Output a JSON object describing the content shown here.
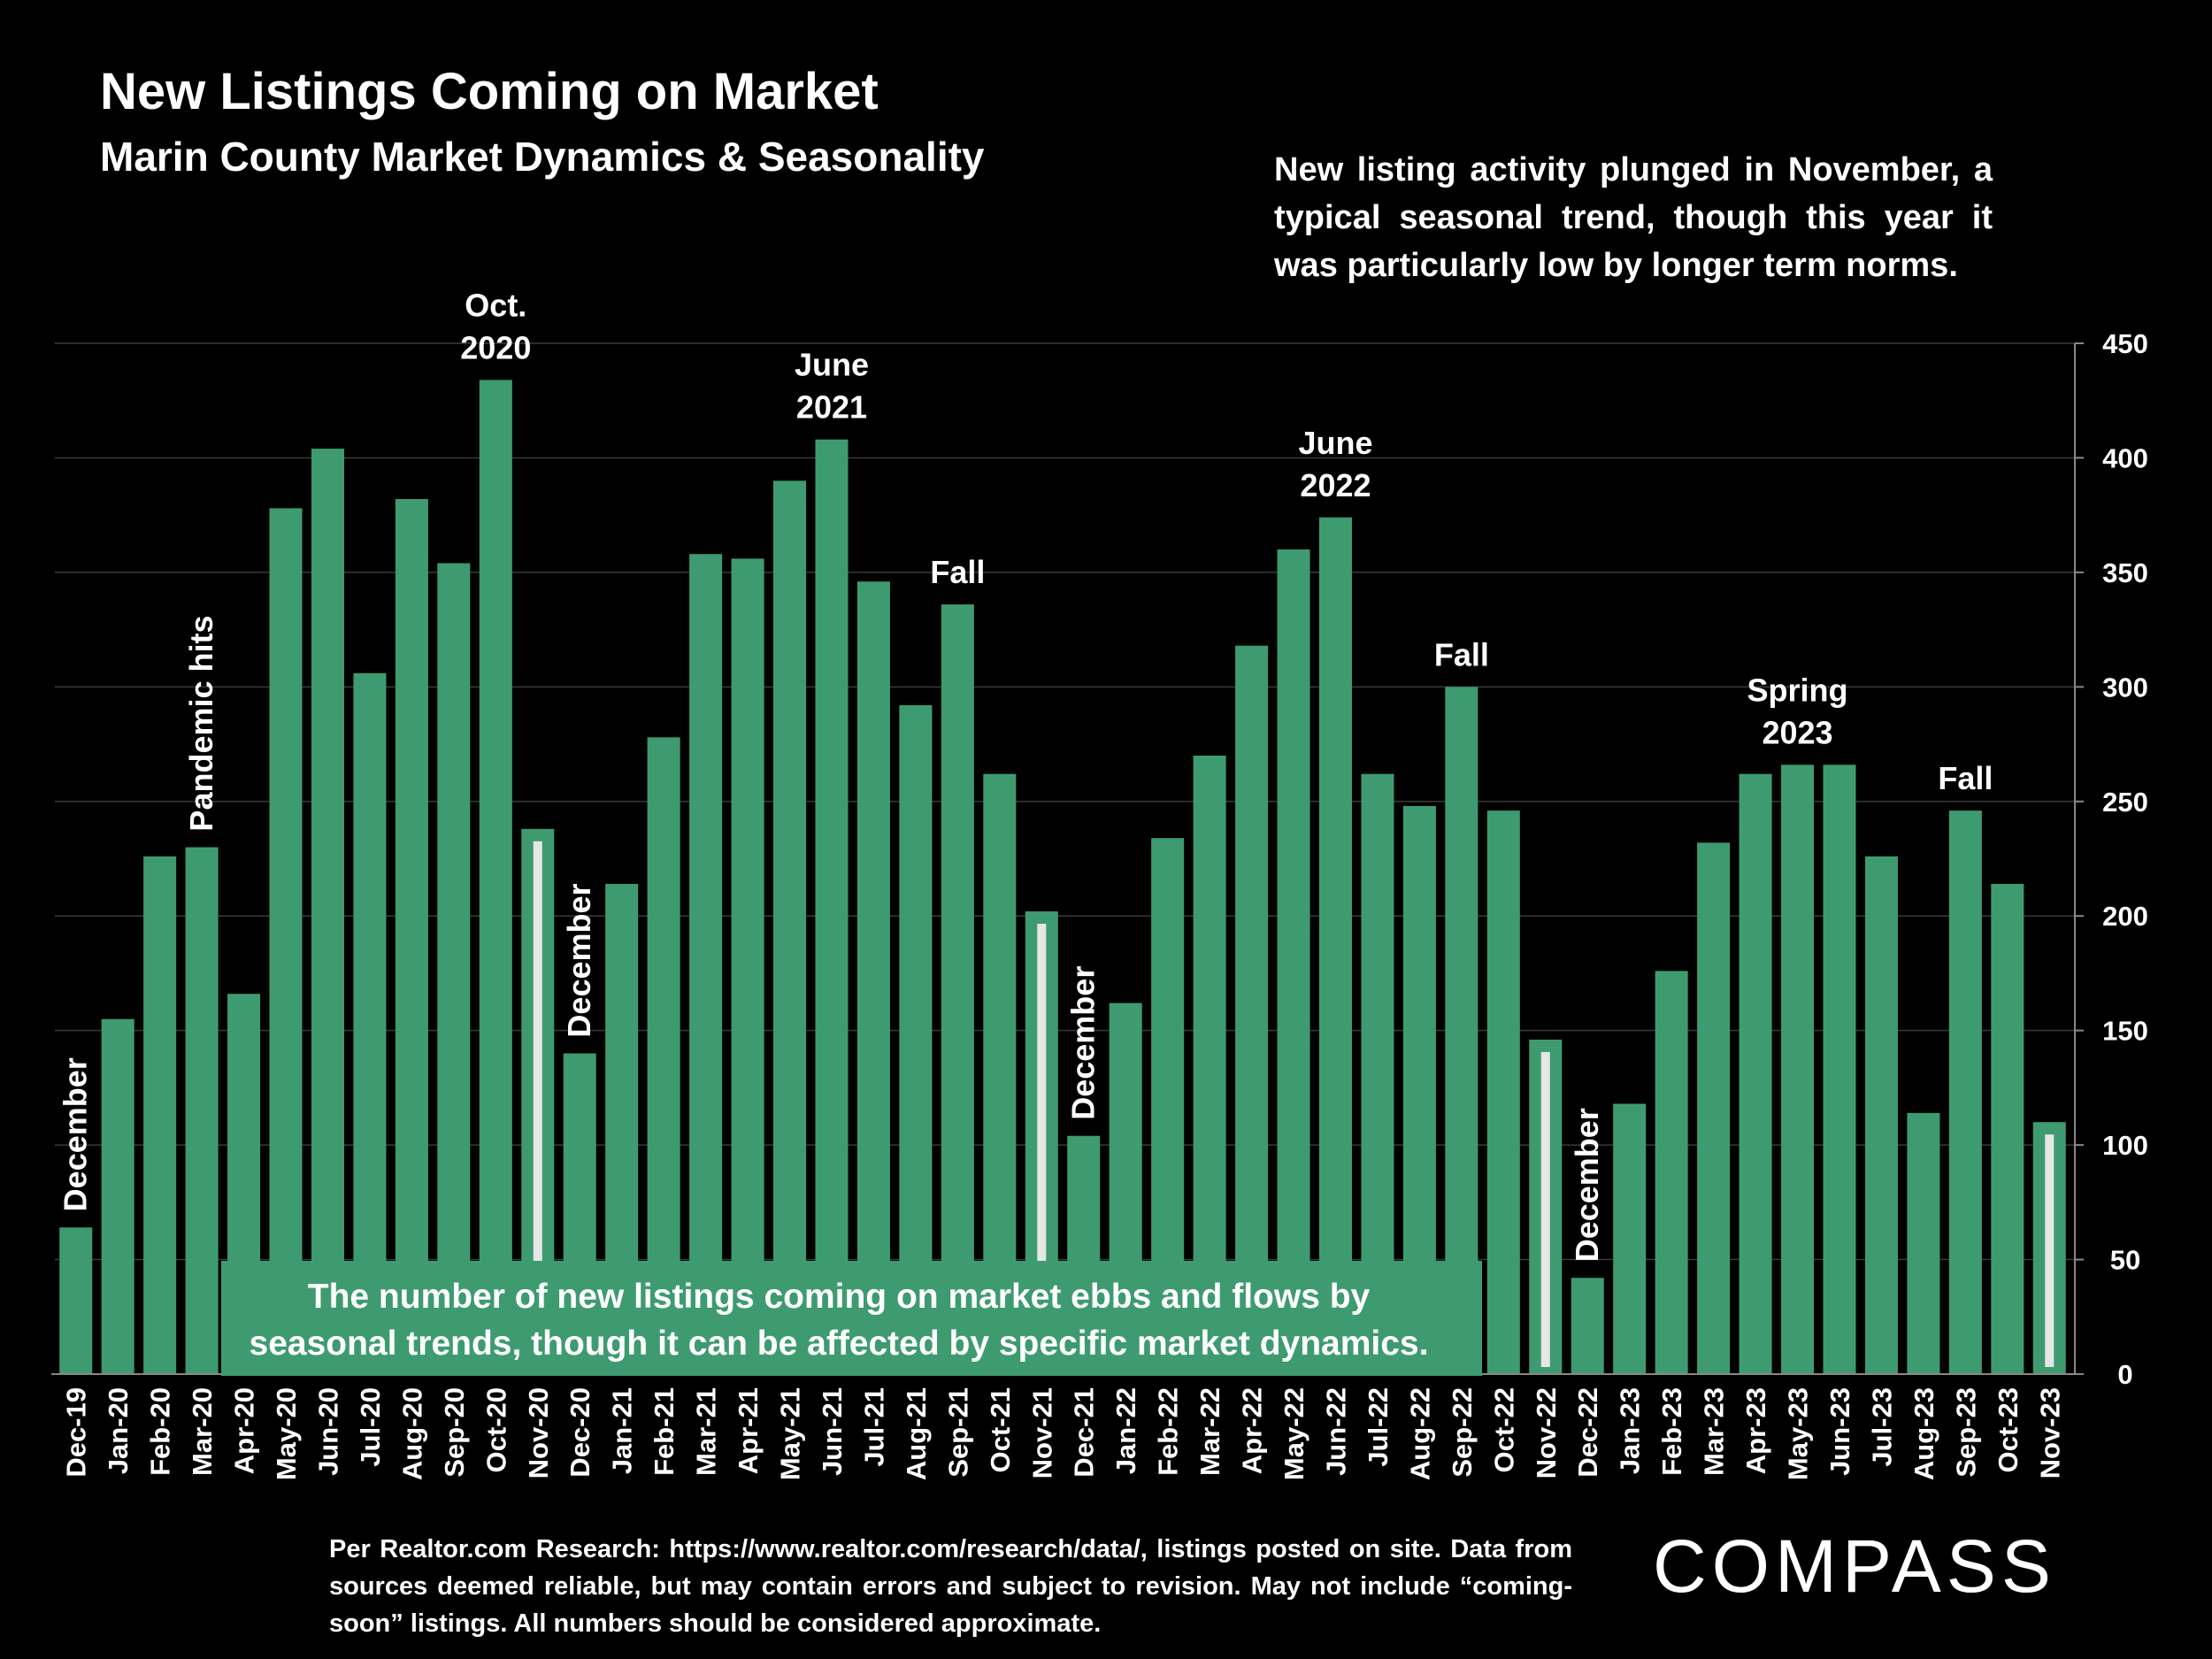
{
  "title": "New Listings Coming on Market",
  "subtitle": "Marin County Market Dynamics & Seasonality",
  "note": "New listing activity plunged in November, a typical seasonal trend, though this year it was particularly low by longer term norms.",
  "callout": [
    "The number of new listings coming on market ebbs and flows by",
    "seasonal trends, though it can be affected by specific market dynamics."
  ],
  "source": "Per Realtor.com Research:  https://www.realtor.com/research/data/, listings posted on site. Data from sources deemed reliable, but may contain errors and subject to revision. May not include “coming-soon” listings. All numbers should be considered approximate.",
  "logo": "COMPASS",
  "colors": {
    "bar": "#3e9b70",
    "highlight_marker": "#e6e6e6",
    "grid": "#3a3a3a",
    "background": "#000000"
  },
  "chart_data": {
    "type": "bar",
    "categories": [
      "Dec-19",
      "Jan-20",
      "Feb-20",
      "Mar-20",
      "Apr-20",
      "May-20",
      "Jun-20",
      "Jul-20",
      "Aug-20",
      "Sep-20",
      "Oct-20",
      "Nov-20",
      "Dec-20",
      "Jan-21",
      "Feb-21",
      "Mar-21",
      "Apr-21",
      "May-21",
      "Jun-21",
      "Jul-21",
      "Aug-21",
      "Sep-21",
      "Oct-21",
      "Nov-21",
      "Dec-21",
      "Jan-22",
      "Feb-22",
      "Mar-22",
      "Apr-22",
      "May-22",
      "Jun-22",
      "Jul-22",
      "Aug-22",
      "Sep-22",
      "Oct-22",
      "Nov-22",
      "Dec-22",
      "Jan-23",
      "Feb-23",
      "Mar-23",
      "Apr-23",
      "May-23",
      "Jun-23",
      "Jul-23",
      "Aug-23",
      "Sep-23",
      "Oct-23",
      "Nov-23"
    ],
    "values": [
      64,
      155,
      226,
      230,
      166,
      378,
      404,
      306,
      382,
      354,
      434,
      238,
      140,
      214,
      278,
      358,
      356,
      390,
      408,
      346,
      292,
      336,
      262,
      202,
      104,
      162,
      234,
      270,
      318,
      360,
      374,
      262,
      248,
      300,
      246,
      146,
      42,
      118,
      176,
      232,
      262,
      266,
      266,
      226,
      114,
      246,
      214,
      110
    ],
    "highlighted": [
      "Nov-20",
      "Nov-21",
      "Nov-22",
      "Nov-23"
    ],
    "ylim": [
      0,
      450
    ],
    "yticks": [
      0,
      50,
      100,
      150,
      200,
      250,
      300,
      350,
      400,
      450
    ],
    "y_axis_side": "right",
    "grid": true,
    "annotations": [
      {
        "category": "Dec-19",
        "lines": [
          "December"
        ],
        "vertical": true
      },
      {
        "category": "Mar-20",
        "lines": [
          "Pandemic hits"
        ],
        "vertical": true
      },
      {
        "category": "Oct-20",
        "lines": [
          "Oct.",
          "2020"
        ],
        "vertical": false
      },
      {
        "category": "Dec-20",
        "lines": [
          "December"
        ],
        "vertical": true
      },
      {
        "category": "Jun-21",
        "lines": [
          "June",
          "2021"
        ],
        "vertical": false
      },
      {
        "category": "Sep-21",
        "lines": [
          "Fall"
        ],
        "vertical": false
      },
      {
        "category": "Dec-21",
        "lines": [
          "December"
        ],
        "vertical": true
      },
      {
        "category": "Jun-22",
        "lines": [
          "June",
          "2022"
        ],
        "vertical": false
      },
      {
        "category": "Sep-22",
        "lines": [
          "Fall"
        ],
        "vertical": false
      },
      {
        "category": "Dec-22",
        "lines": [
          "December"
        ],
        "vertical": true
      },
      {
        "category": "May-23",
        "lines": [
          "Spring",
          "2023"
        ],
        "vertical": false
      },
      {
        "category": "Sep-23",
        "lines": [
          "Fall"
        ],
        "vertical": false
      }
    ]
  }
}
